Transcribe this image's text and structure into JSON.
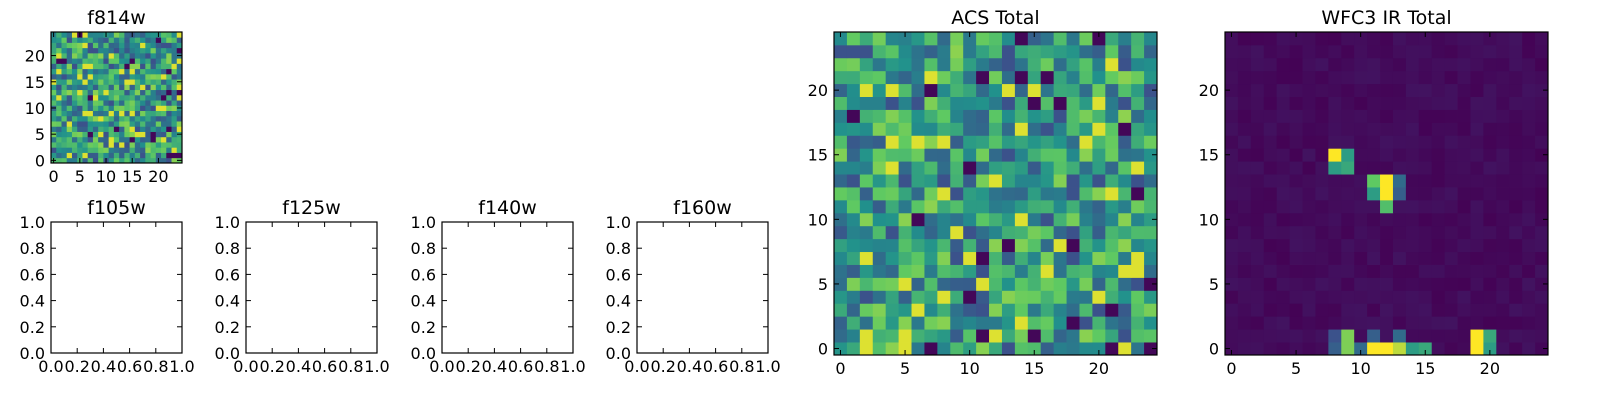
{
  "chart_data": [
    {
      "type": "heatmap",
      "title": "f814w",
      "grid_size": 25,
      "xlim": [
        -0.5,
        24.5
      ],
      "ylim": [
        -0.5,
        24.5
      ],
      "x_ticks": [
        "0",
        "5",
        "10",
        "15",
        "20"
      ],
      "y_ticks": [
        "0",
        "5",
        "10",
        "15",
        "20"
      ],
      "colormap": [
        "#440154",
        "#3b528b",
        "#21918c",
        "#5ec962",
        "#fde725"
      ],
      "values": "noisy 25x25 image, mostly mid-to-high values with scattered dark pixels"
    },
    {
      "type": "line",
      "title": "f105w",
      "xlim": [
        0,
        1
      ],
      "ylim": [
        0,
        1
      ],
      "x_ticks": [
        "0.0",
        "0.2",
        "0.4",
        "0.6",
        "0.8",
        "1.0"
      ],
      "y_ticks": [
        "0.0",
        "0.2",
        "0.4",
        "0.6",
        "0.8",
        "1.0"
      ],
      "series": []
    },
    {
      "type": "line",
      "title": "f125w",
      "xlim": [
        0,
        1
      ],
      "ylim": [
        0,
        1
      ],
      "x_ticks": [
        "0.0",
        "0.2",
        "0.4",
        "0.6",
        "0.8",
        "1.0"
      ],
      "y_ticks": [
        "0.0",
        "0.2",
        "0.4",
        "0.6",
        "0.8",
        "1.0"
      ],
      "series": []
    },
    {
      "type": "line",
      "title": "f140w",
      "xlim": [
        0,
        1
      ],
      "ylim": [
        0,
        1
      ],
      "x_ticks": [
        "0.0",
        "0.2",
        "0.4",
        "0.6",
        "0.8",
        "1.0"
      ],
      "y_ticks": [
        "0.0",
        "0.2",
        "0.4",
        "0.6",
        "0.8",
        "1.0"
      ],
      "series": []
    },
    {
      "type": "line",
      "title": "f160w",
      "xlim": [
        0,
        1
      ],
      "ylim": [
        0,
        1
      ],
      "x_ticks": [
        "0.0",
        "0.2",
        "0.4",
        "0.6",
        "0.8",
        "1.0"
      ],
      "y_ticks": [
        "0.0",
        "0.2",
        "0.4",
        "0.6",
        "0.8",
        "1.0"
      ],
      "series": []
    },
    {
      "type": "heatmap",
      "title": "ACS Total",
      "grid_size": 25,
      "xlim": [
        -0.5,
        24.5
      ],
      "ylim": [
        -0.5,
        24.5
      ],
      "x_ticks": [
        "0",
        "5",
        "10",
        "15",
        "20"
      ],
      "y_ticks": [
        "0",
        "5",
        "10",
        "15",
        "20"
      ],
      "colormap": [
        "#440154",
        "#3b528b",
        "#21918c",
        "#5ec962",
        "#fde725"
      ],
      "values": "noisy 25x25 image, mostly mid-to-high values with scattered dark pixels"
    },
    {
      "type": "heatmap",
      "title": "WFC3 IR Total",
      "grid_size": 25,
      "xlim": [
        -0.5,
        24.5
      ],
      "ylim": [
        -0.5,
        24.5
      ],
      "x_ticks": [
        "0",
        "5",
        "10",
        "15",
        "20"
      ],
      "y_ticks": [
        "0",
        "5",
        "10",
        "15",
        "20"
      ],
      "colormap": [
        "#440154",
        "#3b528b",
        "#21918c",
        "#5ec962",
        "#fde725"
      ],
      "background_level": 0.03,
      "hot_pixels": [
        {
          "x": 8,
          "y": 15,
          "v": 1.0
        },
        {
          "x": 9,
          "y": 15,
          "v": 0.55
        },
        {
          "x": 8,
          "y": 14,
          "v": 0.55
        },
        {
          "x": 9,
          "y": 14,
          "v": 0.6
        },
        {
          "x": 11,
          "y": 13,
          "v": 0.75
        },
        {
          "x": 12,
          "y": 13,
          "v": 1.0
        },
        {
          "x": 13,
          "y": 13,
          "v": 0.35
        },
        {
          "x": 11,
          "y": 12,
          "v": 0.55
        },
        {
          "x": 12,
          "y": 12,
          "v": 1.0
        },
        {
          "x": 13,
          "y": 12,
          "v": 0.3
        },
        {
          "x": 12,
          "y": 11,
          "v": 0.7
        },
        {
          "x": 8,
          "y": 1,
          "v": 0.25
        },
        {
          "x": 9,
          "y": 1,
          "v": 0.8
        },
        {
          "x": 11,
          "y": 1,
          "v": 0.3
        },
        {
          "x": 13,
          "y": 1,
          "v": 0.35
        },
        {
          "x": 19,
          "y": 1,
          "v": 1.0
        },
        {
          "x": 20,
          "y": 1,
          "v": 0.6
        },
        {
          "x": 8,
          "y": 0,
          "v": 0.3
        },
        {
          "x": 9,
          "y": 0,
          "v": 0.8
        },
        {
          "x": 10,
          "y": 0,
          "v": 0.35
        },
        {
          "x": 11,
          "y": 0,
          "v": 1.0
        },
        {
          "x": 12,
          "y": 0,
          "v": 1.0
        },
        {
          "x": 13,
          "y": 0,
          "v": 0.9
        },
        {
          "x": 14,
          "y": 0,
          "v": 0.55
        },
        {
          "x": 15,
          "y": 0,
          "v": 0.6
        },
        {
          "x": 19,
          "y": 0,
          "v": 1.0
        },
        {
          "x": 20,
          "y": 0,
          "v": 0.55
        }
      ]
    }
  ]
}
